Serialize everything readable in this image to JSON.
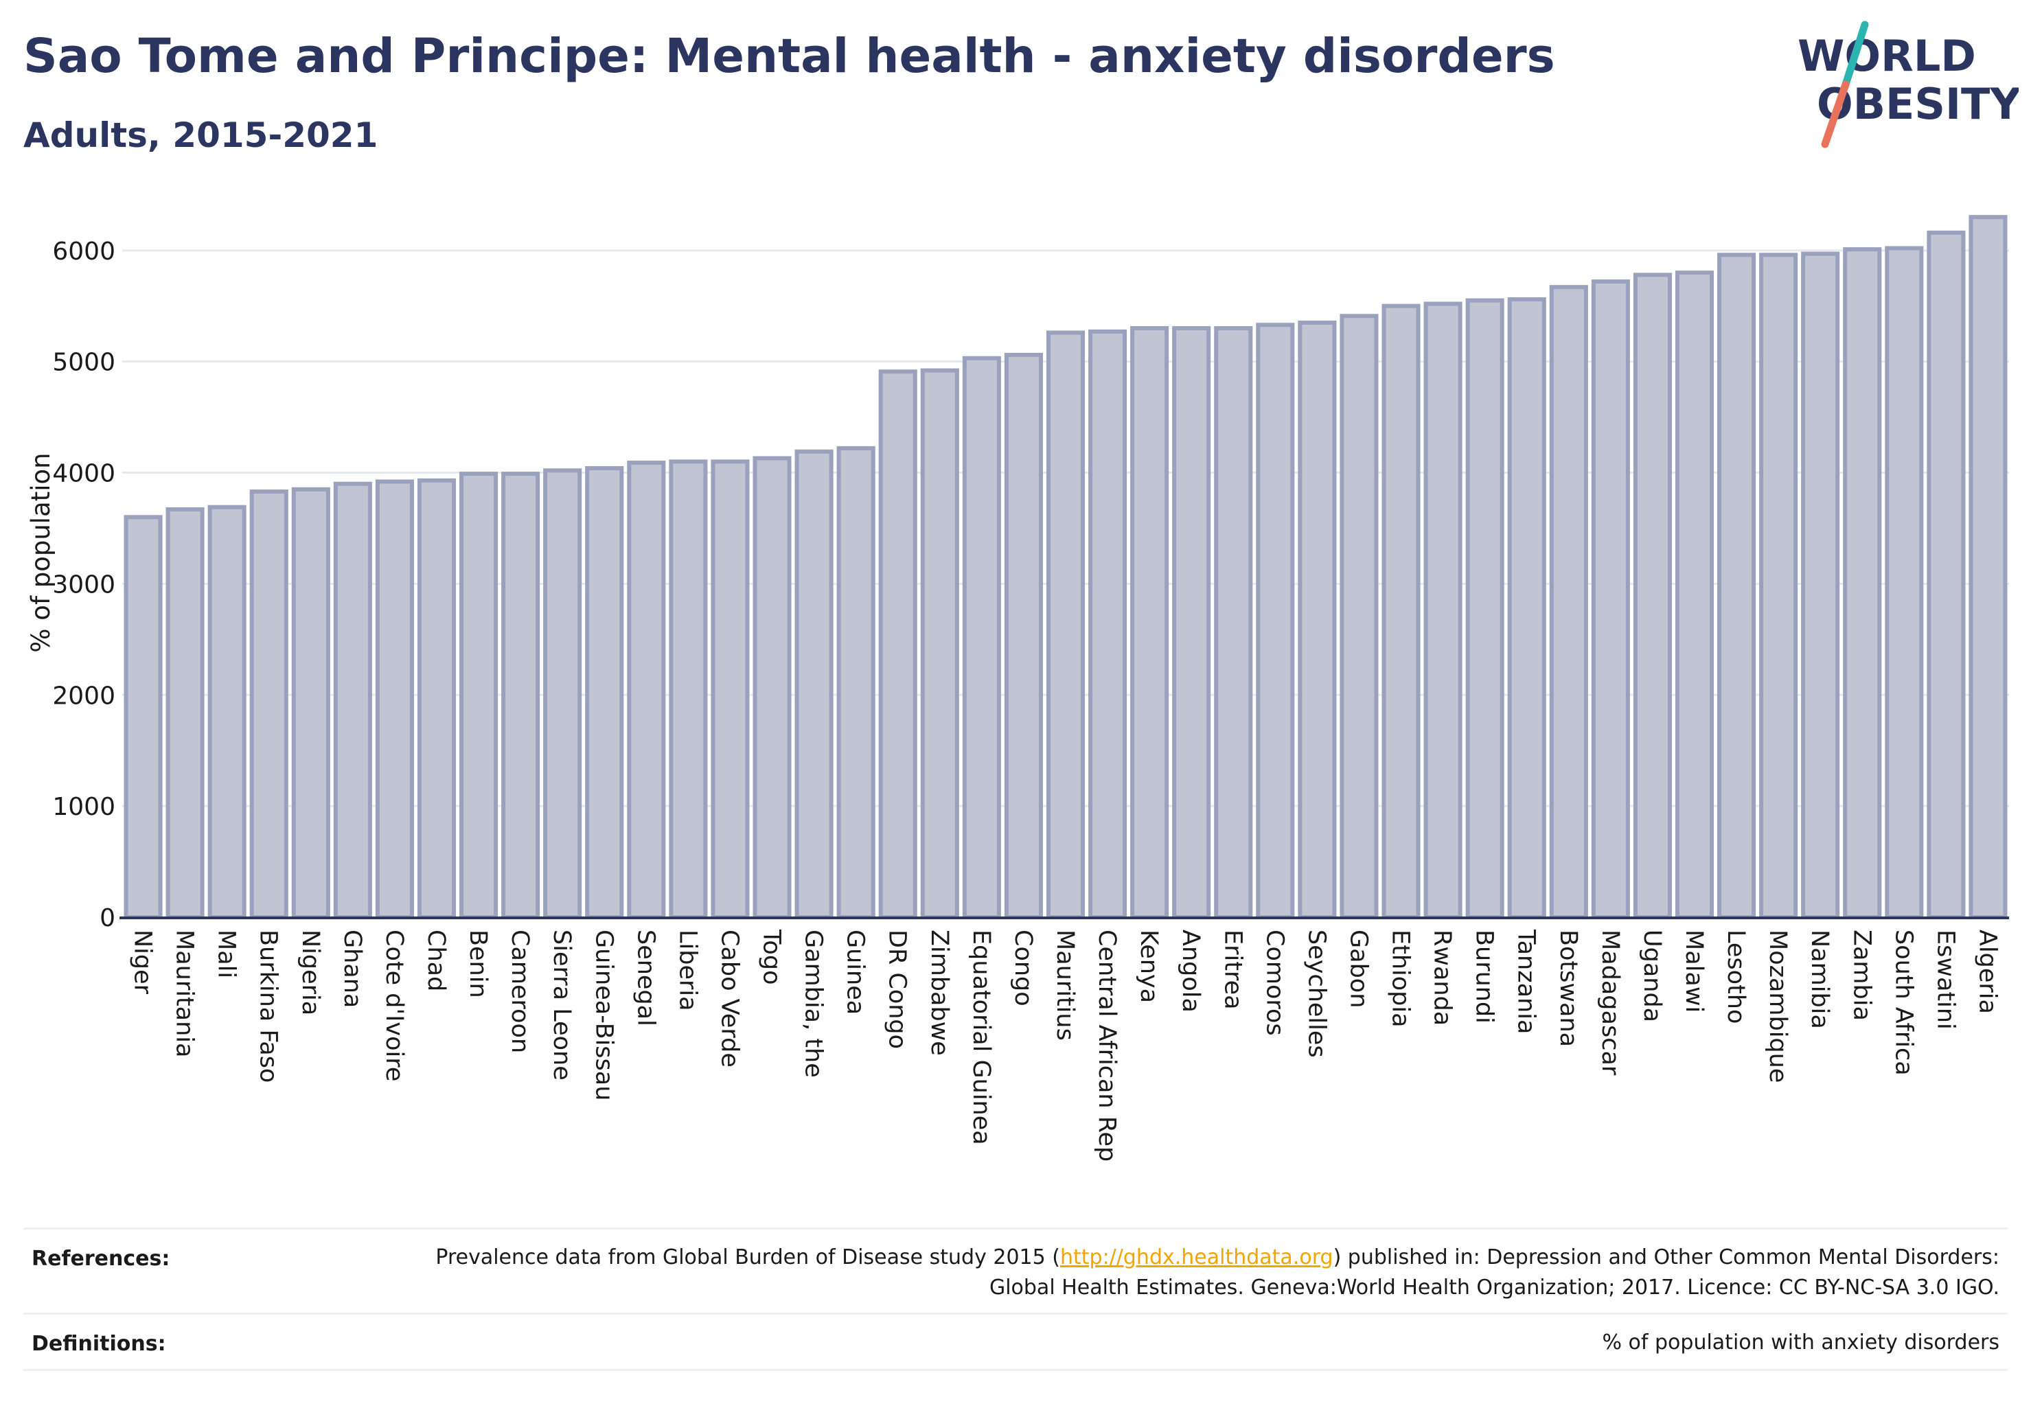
{
  "header": {
    "title": "Sao Tome and Principe: Mental health - anxiety disorders",
    "subtitle": "Adults, 2015-2021"
  },
  "logo": {
    "line1": "WORLD",
    "line2": "OBESITY",
    "colors": {
      "text": "#2c3560",
      "slash_top": "#2bb5b0",
      "slash_bottom": "#e8735a"
    }
  },
  "chart_data": {
    "type": "bar",
    "ylabel": "% of population",
    "xlabel": "",
    "ylim": [
      0,
      6400
    ],
    "yticks": [
      0,
      1000,
      2000,
      3000,
      4000,
      5000,
      6000
    ],
    "grid": true,
    "bar_fill": "#c0c4d3",
    "bar_stroke": "#9aa1bd",
    "categories": [
      "Niger",
      "Mauritania",
      "Mali",
      "Burkina Faso",
      "Nigeria",
      "Ghana",
      "Cote d'Ivoire",
      "Chad",
      "Benin",
      "Cameroon",
      "Sierra Leone",
      "Guinea-Bissau",
      "Senegal",
      "Liberia",
      "Cabo Verde",
      "Togo",
      "Gambia, the",
      "Guinea",
      "DR Congo",
      "Zimbabwe",
      "Equatorial Guinea",
      "Congo",
      "Mauritius",
      "Central African Rep",
      "Kenya",
      "Angola",
      "Eritrea",
      "Comoros",
      "Seychelles",
      "Gabon",
      "Ethiopia",
      "Rwanda",
      "Burundi",
      "Tanzania",
      "Botswana",
      "Madagascar",
      "Uganda",
      "Malawi",
      "Lesotho",
      "Mozambique",
      "Namibia",
      "Zambia",
      "South Africa",
      "Eswatini",
      "Algeria"
    ],
    "values": [
      3600,
      3670,
      3690,
      3830,
      3850,
      3900,
      3920,
      3930,
      3990,
      3990,
      4020,
      4040,
      4090,
      4100,
      4100,
      4130,
      4190,
      4220,
      4910,
      4920,
      5030,
      5060,
      5260,
      5270,
      5300,
      5300,
      5300,
      5330,
      5350,
      5410,
      5500,
      5520,
      5550,
      5560,
      5670,
      5720,
      5780,
      5800,
      5960,
      5960,
      5970,
      6010,
      6020,
      6160,
      6300
    ]
  },
  "references": {
    "label": "References:",
    "text_before": "Prevalence data from Global Burden of Disease study 2015 (",
    "link": "http://ghdx.healthdata.org",
    "text_after": ") published in: Depression and Other Common Mental Disorders: Global Health Estimates. Geneva:World Health Organization; 2017. Licence: CC BY-NC-SA 3.0 IGO."
  },
  "definitions": {
    "label": "Definitions:",
    "text": "% of population with anxiety disorders"
  }
}
